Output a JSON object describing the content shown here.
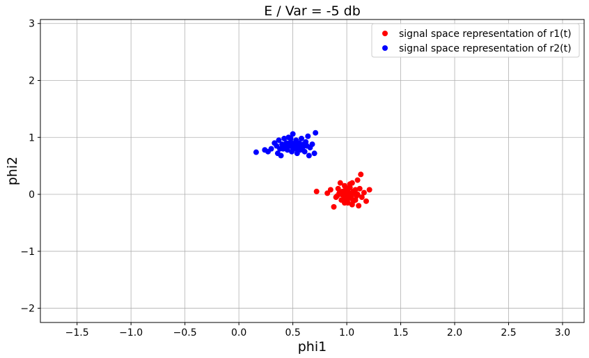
{
  "chart_data": {
    "type": "scatter",
    "title": "E / Var = -5 db",
    "xlabel": "phi1",
    "ylabel": "phi2",
    "xlim": [
      -1.84,
      3.2
    ],
    "ylim": [
      -2.25,
      3.07
    ],
    "xticks": [
      -1.5,
      -1.0,
      -0.5,
      0.0,
      0.5,
      1.0,
      1.5,
      2.0,
      2.5,
      3.0
    ],
    "xtick_labels": [
      "−1.5",
      "−1.0",
      "−0.5",
      "0.0",
      "0.5",
      "1.0",
      "1.5",
      "2.0",
      "2.5",
      "3.0"
    ],
    "yticks": [
      -2,
      -1,
      0,
      1,
      2,
      3
    ],
    "ytick_labels": [
      "−2",
      "−1",
      "0",
      "1",
      "2",
      "3"
    ],
    "grid": true,
    "legend_position": "top-right",
    "series": [
      {
        "name": "signal space representation of r1(t)",
        "color": "#ff0000",
        "points": [
          [
            0.72,
            0.05
          ],
          [
            0.82,
            0.02
          ],
          [
            0.85,
            0.08
          ],
          [
            0.88,
            -0.22
          ],
          [
            0.9,
            -0.05
          ],
          [
            0.92,
            0.1
          ],
          [
            0.93,
            0.02
          ],
          [
            0.94,
            0.2
          ],
          [
            0.95,
            -0.1
          ],
          [
            0.96,
            0.05
          ],
          [
            0.97,
            -0.02
          ],
          [
            0.98,
            0.15
          ],
          [
            0.99,
            -0.08
          ],
          [
            1.0,
            0.0
          ],
          [
            1.0,
            0.07
          ],
          [
            1.01,
            -0.15
          ],
          [
            1.02,
            0.03
          ],
          [
            1.03,
            0.12
          ],
          [
            1.04,
            -0.05
          ],
          [
            1.05,
            0.2
          ],
          [
            1.06,
            -0.12
          ],
          [
            1.07,
            0.02
          ],
          [
            1.08,
            0.08
          ],
          [
            1.09,
            -0.03
          ],
          [
            1.1,
            0.25
          ],
          [
            1.11,
            -0.2
          ],
          [
            1.12,
            0.1
          ],
          [
            1.13,
            0.35
          ],
          [
            1.14,
            -0.05
          ],
          [
            1.16,
            0.03
          ],
          [
            1.18,
            -0.12
          ],
          [
            1.21,
            0.08
          ],
          [
            0.97,
            0.05
          ],
          [
            1.01,
            0.1
          ],
          [
            1.04,
            0.0
          ],
          [
            0.95,
            0.0
          ],
          [
            1.06,
            0.05
          ],
          [
            1.02,
            -0.07
          ],
          [
            0.99,
            0.12
          ],
          [
            1.08,
            -0.1
          ],
          [
            0.91,
            -0.03
          ],
          [
            1.05,
            -0.18
          ],
          [
            1.1,
            0.0
          ],
          [
            0.98,
            -0.15
          ],
          [
            1.03,
            0.18
          ]
        ]
      },
      {
        "name": "signal space representation of r2(t)",
        "color": "#0000ff",
        "points": [
          [
            0.16,
            0.74
          ],
          [
            0.24,
            0.78
          ],
          [
            0.27,
            0.75
          ],
          [
            0.3,
            0.8
          ],
          [
            0.33,
            0.9
          ],
          [
            0.35,
            0.85
          ],
          [
            0.36,
            0.72
          ],
          [
            0.37,
            0.95
          ],
          [
            0.39,
            0.68
          ],
          [
            0.4,
            0.88
          ],
          [
            0.41,
            0.8
          ],
          [
            0.42,
            0.98
          ],
          [
            0.43,
            0.82
          ],
          [
            0.44,
            0.9
          ],
          [
            0.45,
            0.78
          ],
          [
            0.46,
            1.0
          ],
          [
            0.47,
            0.85
          ],
          [
            0.48,
            0.92
          ],
          [
            0.49,
            0.75
          ],
          [
            0.5,
            1.06
          ],
          [
            0.51,
            0.88
          ],
          [
            0.52,
            0.8
          ],
          [
            0.53,
            0.95
          ],
          [
            0.54,
            0.72
          ],
          [
            0.55,
            0.85
          ],
          [
            0.56,
            0.9
          ],
          [
            0.57,
            0.78
          ],
          [
            0.58,
            0.98
          ],
          [
            0.59,
            0.82
          ],
          [
            0.6,
            0.88
          ],
          [
            0.61,
            0.75
          ],
          [
            0.62,
            0.92
          ],
          [
            0.63,
            0.85
          ],
          [
            0.64,
            1.02
          ],
          [
            0.65,
            0.68
          ],
          [
            0.66,
            0.82
          ],
          [
            0.68,
            0.88
          ],
          [
            0.7,
            0.72
          ],
          [
            0.71,
            1.08
          ],
          [
            0.38,
            0.8
          ],
          [
            0.45,
            0.88
          ],
          [
            0.5,
            0.82
          ],
          [
            0.55,
            0.78
          ],
          [
            0.48,
            0.98
          ],
          [
            0.52,
            0.9
          ],
          [
            0.57,
            0.86
          ]
        ]
      }
    ]
  }
}
